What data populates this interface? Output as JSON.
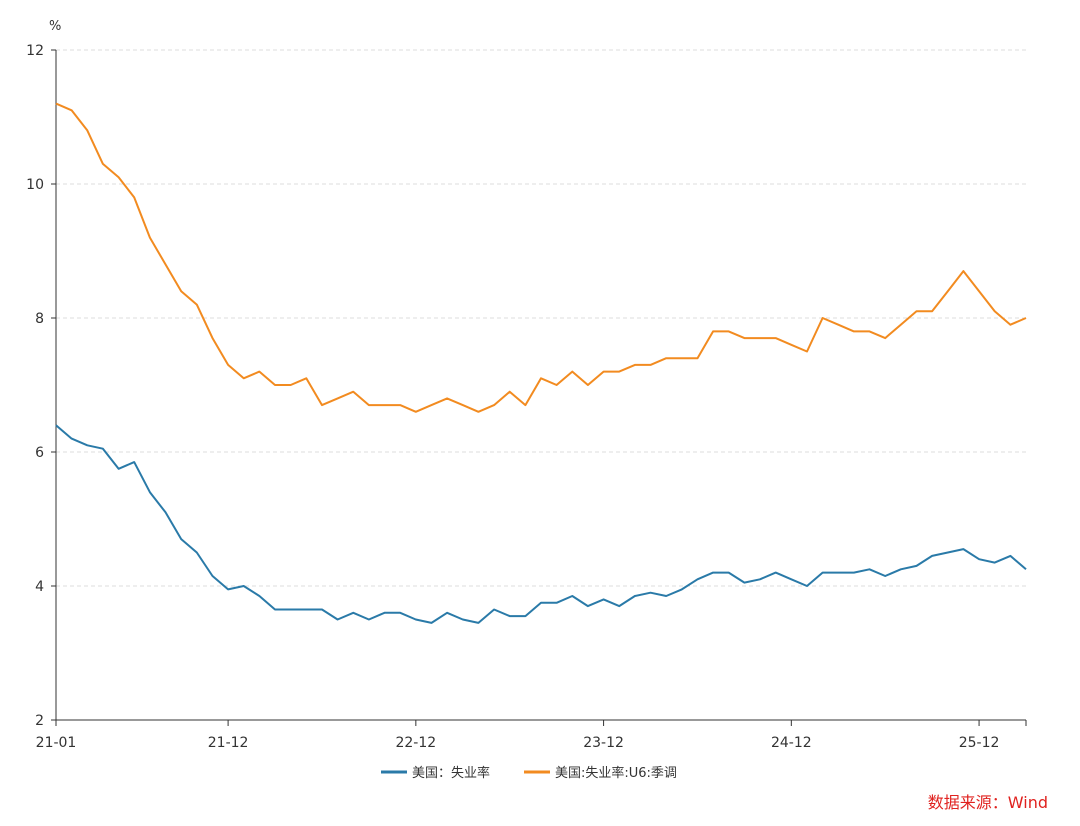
{
  "chart_data": {
    "type": "line",
    "unit": "%",
    "ylim": [
      2,
      12
    ],
    "y_ticks": [
      2,
      4,
      6,
      8,
      10,
      12
    ],
    "x_tick_labels": [
      "21-01",
      "21-12",
      "22-12",
      "23-12",
      "24-12",
      "25-12"
    ],
    "x_tick_indices": [
      0,
      11,
      23,
      35,
      47,
      59
    ],
    "grid": true,
    "legend_position": "bottom-center",
    "series": [
      {
        "name": "美国：失业率",
        "color": "#2a7aa8",
        "values": [
          6.4,
          6.2,
          6.1,
          6.05,
          5.75,
          5.85,
          5.4,
          5.1,
          4.7,
          4.5,
          4.15,
          3.95,
          4.0,
          3.85,
          3.65,
          3.65,
          3.65,
          3.65,
          3.5,
          3.6,
          3.5,
          3.6,
          3.6,
          3.5,
          3.45,
          3.6,
          3.5,
          3.45,
          3.65,
          3.55,
          3.55,
          3.75,
          3.75,
          3.85,
          3.7,
          3.8,
          3.7,
          3.85,
          3.9,
          3.85,
          3.95,
          4.1,
          4.2,
          4.2,
          4.05,
          4.1,
          4.2,
          4.1,
          4.0,
          4.2,
          4.2,
          4.2,
          4.25,
          4.15,
          4.25,
          4.3,
          4.45,
          4.5,
          4.55,
          4.4,
          4.35,
          4.45,
          4.25
        ]
      },
      {
        "name": "美国:失业率:U6:季调",
        "color": "#f28b20",
        "values": [
          11.2,
          11.1,
          10.8,
          10.3,
          10.1,
          9.8,
          9.2,
          8.8,
          8.4,
          8.2,
          7.7,
          7.3,
          7.1,
          7.2,
          7.0,
          7.0,
          7.1,
          6.7,
          6.8,
          6.9,
          6.7,
          6.7,
          6.7,
          6.6,
          6.7,
          6.8,
          6.7,
          6.6,
          6.7,
          6.9,
          6.7,
          7.1,
          7.0,
          7.2,
          7.0,
          7.2,
          7.2,
          7.3,
          7.3,
          7.4,
          7.4,
          7.4,
          7.8,
          7.8,
          7.7,
          7.7,
          7.7,
          7.6,
          7.5,
          8.0,
          7.9,
          7.8,
          7.8,
          7.7,
          7.9,
          8.1,
          8.1,
          8.4,
          8.7,
          8.4,
          8.1,
          7.9,
          8.0
        ]
      }
    ]
  },
  "source_text": "数据来源：Wind"
}
